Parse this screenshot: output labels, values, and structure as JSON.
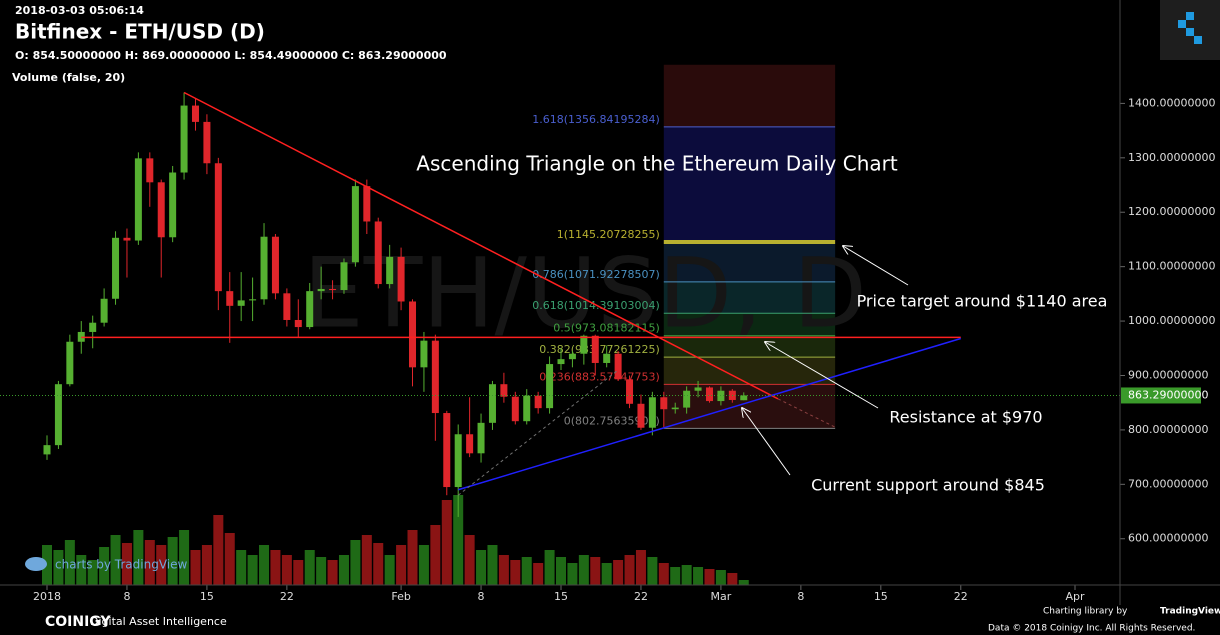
{
  "chart_data": {
    "type": "candlestick",
    "timestamp": "2018-03-03 05:06:14",
    "title": "Bitfinex - ETH/USD (D)",
    "ohlc_label": "O: 854.50000000 H: 869.00000000 L: 854.49000000 C: 863.29000000",
    "volume_label": "Volume (false, 20)",
    "watermark": "ETH/USD, D",
    "x": [
      "2018-01-01",
      "2018-01-02",
      "2018-01-03",
      "2018-01-04",
      "2018-01-05",
      "2018-01-06",
      "2018-01-07",
      "2018-01-08",
      "2018-01-09",
      "2018-01-10",
      "2018-01-11",
      "2018-01-12",
      "2018-01-13",
      "2018-01-14",
      "2018-01-15",
      "2018-01-16",
      "2018-01-17",
      "2018-01-18",
      "2018-01-19",
      "2018-01-20",
      "2018-01-21",
      "2018-01-22",
      "2018-01-23",
      "2018-01-24",
      "2018-01-25",
      "2018-01-26",
      "2018-01-27",
      "2018-01-28",
      "2018-01-29",
      "2018-01-30",
      "2018-01-31",
      "2018-02-01",
      "2018-02-02",
      "2018-02-03",
      "2018-02-04",
      "2018-02-05",
      "2018-02-06",
      "2018-02-07",
      "2018-02-08",
      "2018-02-09",
      "2018-02-10",
      "2018-02-11",
      "2018-02-12",
      "2018-02-13",
      "2018-02-14",
      "2018-02-15",
      "2018-02-16",
      "2018-02-17",
      "2018-02-18",
      "2018-02-19",
      "2018-02-20",
      "2018-02-21",
      "2018-02-22",
      "2018-02-23",
      "2018-02-24",
      "2018-02-25",
      "2018-02-26",
      "2018-02-27",
      "2018-02-28",
      "2018-03-01",
      "2018-03-02",
      "2018-03-03"
    ],
    "open": [
      755,
      772,
      884,
      962,
      980,
      997,
      1041,
      1153,
      1148,
      1299,
      1255,
      1154,
      1273,
      1396,
      1366,
      1290,
      1055,
      1028,
      1038,
      1040,
      1155,
      1051,
      1002,
      989,
      1055,
      1059,
      1057,
      1108,
      1248,
      1183,
      1068,
      1118,
      1036,
      915,
      964,
      831,
      695,
      792,
      757,
      813,
      884,
      861,
      816,
      863,
      840,
      921,
      930,
      940,
      973,
      923,
      940,
      893,
      848,
      804,
      860,
      838,
      841,
      872,
      878,
      853,
      872,
      854.5
    ],
    "high": [
      790,
      890,
      975,
      1000,
      1010,
      1060,
      1165,
      1170,
      1310,
      1310,
      1260,
      1285,
      1420,
      1410,
      1380,
      1300,
      1090,
      1090,
      1080,
      1180,
      1160,
      1060,
      1040,
      1070,
      1100,
      1075,
      1115,
      1260,
      1260,
      1190,
      1140,
      1135,
      1040,
      980,
      975,
      835,
      810,
      860,
      830,
      890,
      905,
      870,
      875,
      870,
      935,
      950,
      945,
      975,
      975,
      955,
      945,
      900,
      865,
      870,
      870,
      850,
      880,
      890,
      880,
      880,
      875,
      869
    ],
    "low": [
      745,
      765,
      880,
      940,
      950,
      990,
      1030,
      1080,
      1140,
      1210,
      1080,
      1145,
      1260,
      1350,
      1270,
      1020,
      960,
      1000,
      1000,
      1030,
      1040,
      990,
      970,
      985,
      1040,
      1040,
      1050,
      1100,
      1160,
      1060,
      1060,
      1020,
      880,
      870,
      780,
      680,
      640,
      750,
      740,
      800,
      850,
      810,
      810,
      830,
      830,
      910,
      915,
      920,
      900,
      915,
      890,
      840,
      800,
      790,
      805,
      830,
      830,
      860,
      850,
      845,
      850,
      854.49
    ],
    "close": [
      772,
      884,
      962,
      980,
      997,
      1041,
      1153,
      1148,
      1299,
      1255,
      1154,
      1273,
      1396,
      1366,
      1290,
      1055,
      1028,
      1038,
      1040,
      1155,
      1051,
      1002,
      989,
      1055,
      1059,
      1057,
      1108,
      1248,
      1183,
      1068,
      1118,
      1036,
      915,
      964,
      831,
      695,
      792,
      757,
      813,
      884,
      861,
      816,
      863,
      840,
      921,
      930,
      940,
      973,
      923,
      940,
      893,
      848,
      804,
      860,
      838,
      841,
      872,
      878,
      853,
      872,
      855,
      863.29
    ],
    "volume": [
      40,
      35,
      45,
      30,
      25,
      38,
      50,
      42,
      55,
      45,
      40,
      48,
      55,
      35,
      40,
      70,
      52,
      35,
      30,
      40,
      35,
      30,
      25,
      35,
      28,
      25,
      30,
      45,
      50,
      42,
      30,
      40,
      55,
      40,
      60,
      85,
      90,
      50,
      35,
      40,
      30,
      25,
      28,
      22,
      35,
      28,
      22,
      30,
      28,
      22,
      25,
      30,
      35,
      28,
      22,
      18,
      20,
      18,
      16,
      15,
      12,
      5
    ],
    "vlim": [
      0,
      100
    ],
    "up_color": "#56b031",
    "down_color": "#e0262b",
    "vol_up_color": "#1f6a16",
    "vol_down_color": "#8a1414",
    "xlim": [
      "2018-01-01",
      "2018-04-01"
    ],
    "xticks": [
      {
        "value": "2018-01-01",
        "label": "2018"
      },
      {
        "value": "2018-01-08",
        "label": "8"
      },
      {
        "value": "2018-01-15",
        "label": "15"
      },
      {
        "value": "2018-01-22",
        "label": "22"
      },
      {
        "value": "2018-02-01",
        "label": "Feb"
      },
      {
        "value": "2018-02-08",
        "label": "8"
      },
      {
        "value": "2018-02-15",
        "label": "15"
      },
      {
        "value": "2018-02-22",
        "label": "22"
      },
      {
        "value": "2018-03-01",
        "label": "Mar"
      },
      {
        "value": "2018-03-08",
        "label": "8"
      },
      {
        "value": "2018-03-15",
        "label": "15"
      },
      {
        "value": "2018-03-22",
        "label": "22"
      },
      {
        "value": "2018-04-01",
        "label": "Apr"
      }
    ],
    "ylim": [
      515,
      1590
    ],
    "yticks": [
      {
        "value": 600,
        "label": "600.00000000"
      },
      {
        "value": 700,
        "label": "700.00000000"
      },
      {
        "value": 800,
        "label": "800.00000000"
      },
      {
        "value": 900,
        "label": "900.00000000"
      },
      {
        "value": 1000,
        "label": "1000.00000000"
      },
      {
        "value": 1100,
        "label": "1100.00000000"
      },
      {
        "value": 1200,
        "label": "1200.00000000"
      },
      {
        "value": 1300,
        "label": "1300.00000000"
      },
      {
        "value": 1400,
        "label": "1400.00000000"
      }
    ],
    "last_price": {
      "value": 863.29,
      "label": "863.29000000",
      "color": "#3a9a2a"
    },
    "fib": {
      "start": "2018-02-24",
      "end": "2018-03-11",
      "top": 1471,
      "top_zone": "#2a0b0b",
      "levels": [
        {
          "label": "1.618(1356.84195284)",
          "value": 1356.84195284,
          "color": "#4a5fd0",
          "zone": "#0c0c3c"
        },
        {
          "label": "1(1145.20728255)",
          "value": 1145.20728255,
          "color": "#b8b030",
          "zone": "#0b1a2c"
        },
        {
          "label": "0.786(1071.92278507)",
          "value": 1071.92278507,
          "color": "#4a90c0",
          "zone": "#0a2629"
        },
        {
          "label": "0.618(1014.39103004)",
          "value": 1014.39103004,
          "color": "#3aa070",
          "zone": "#0b2812"
        },
        {
          "label": "0.5(973.08182115)",
          "value": 973.08182115,
          "color": "#40a040",
          "zone": "#1a280b"
        },
        {
          "label": "0.382(933.77261225)",
          "value": 933.77261225,
          "color": "#a0b040",
          "zone": "#26260b"
        },
        {
          "label": "0.236(883.57447753)",
          "value": 883.57447753,
          "color": "#d03030",
          "zone": "#2a0e0e"
        },
        {
          "label": "0(802.75635900)",
          "value": 802.756359,
          "color": "#808080",
          "zone": null
        }
      ]
    },
    "lines": [
      {
        "from": [
          "2018-01-13",
          1420
        ],
        "to": [
          "2018-03-06",
          857
        ],
        "color": "#ff2020",
        "dashed": false
      },
      {
        "from": [
          "2018-03-06",
          857
        ],
        "to": [
          "2018-03-11",
          805
        ],
        "color": "#8a4040",
        "dashed": true
      },
      {
        "from": [
          "2018-01-04",
          970
        ],
        "to": [
          "2018-03-22",
          970
        ],
        "color": "#ff2020",
        "dashed": false
      },
      {
        "from": [
          "2018-02-06",
          690
        ],
        "to": [
          "2018-03-22",
          968
        ],
        "color": "#2020ff",
        "dashed": false
      },
      {
        "from": [
          "2018-02-06",
          680
        ],
        "to": [
          "2018-02-20",
          910
        ],
        "color": "#707070",
        "dashed": true
      }
    ],
    "annotations": [
      "Ascending Triangle on the Ethereum Daily Chart",
      "Price target around $1140 area",
      "Resistance at $970",
      "Current support around $845"
    ],
    "branding": {
      "charts_by": "charts by TradingView",
      "coinigy": "COINIGY",
      "tagline": "Digital Asset Intelligence",
      "charting_library": "Charting library by",
      "tradingview": "TradingView",
      "copyright": "Data © 2018 Coinigy Inc. All Rights Reserved."
    }
  }
}
